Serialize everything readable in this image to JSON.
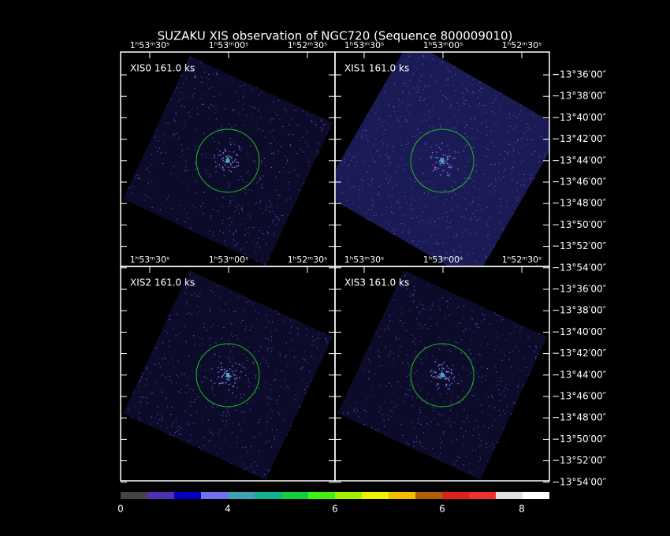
{
  "header": {
    "title": "SUZAKU XIS observation of NGC720  (Sequence 800009010)"
  },
  "panels": [
    {
      "label": "XIS0 161.0 ks"
    },
    {
      "label": "XIS1 161.0 ks"
    },
    {
      "label": "XIS2 161.0 ks"
    },
    {
      "label": "XIS3 161.0 ks"
    }
  ],
  "ra_labels": [
    "1ʰ53ᵐ30ˢ",
    "1ʰ53ᵐ00ˢ",
    "1ʰ52ᵐ30ˢ"
  ],
  "dec_labels": [
    "−13°36′00″",
    "−13°38′00″",
    "−13°40′00″",
    "−13°42′00″",
    "−13°44′00″",
    "−13°46′00″",
    "−13°48′00″",
    "−13°50′00″",
    "−13°52′00″",
    "−13°54′00″"
  ],
  "colorbar_labels": [
    "0",
    "4",
    "6",
    "6",
    "8"
  ]
}
